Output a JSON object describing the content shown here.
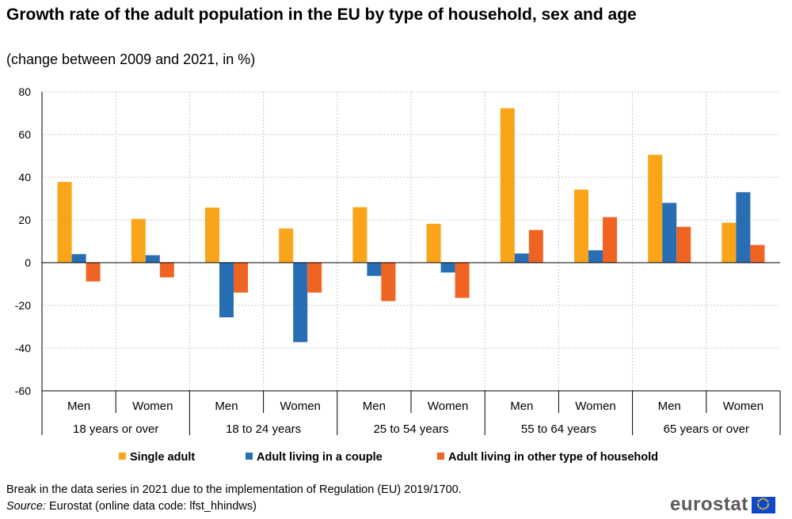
{
  "title": "Growth rate of the adult population in the EU by type of household, sex and age",
  "subtitle": "(change between 2009 and 2021, in %)",
  "footnote": "Break in the data series in 2021 due to the implementation of Regulation (EU) 2019/1700.",
  "source_label": "Source:",
  "source_text": " Eurostat (online data code: lfst_hhindws)",
  "logo_text": "eurostat",
  "chart_data": {
    "type": "bar",
    "ylim": [
      -60,
      80
    ],
    "yticks": [
      -60,
      -40,
      -20,
      0,
      20,
      40,
      60,
      80
    ],
    "grid": true,
    "legend_position": "bottom",
    "categories": [
      "Men",
      "Women",
      "Men",
      "Women",
      "Men",
      "Women",
      "Men",
      "Women",
      "Men",
      "Women"
    ],
    "groups": [
      "18 years or over",
      "18 to 24 years",
      "25 to 54 years",
      "55 to 64 years",
      "65 years or over"
    ],
    "series": [
      {
        "name": "Single adult",
        "color": "#faa519",
        "values": [
          37.8,
          20.5,
          25.8,
          16.0,
          26.0,
          18.2,
          72.3,
          34.2,
          50.5,
          18.7
        ]
      },
      {
        "name": "Adult living in a couple",
        "color": "#286eb4",
        "values": [
          4.0,
          3.5,
          -25.6,
          -37.2,
          -6.2,
          -4.6,
          4.3,
          5.8,
          28.0,
          33.0
        ]
      },
      {
        "name": "Adult living in other type of household",
        "color": "#f06423",
        "values": [
          -8.8,
          -6.9,
          -14.0,
          -14.0,
          -18.0,
          -16.5,
          15.3,
          21.3,
          16.8,
          8.3
        ]
      }
    ]
  }
}
